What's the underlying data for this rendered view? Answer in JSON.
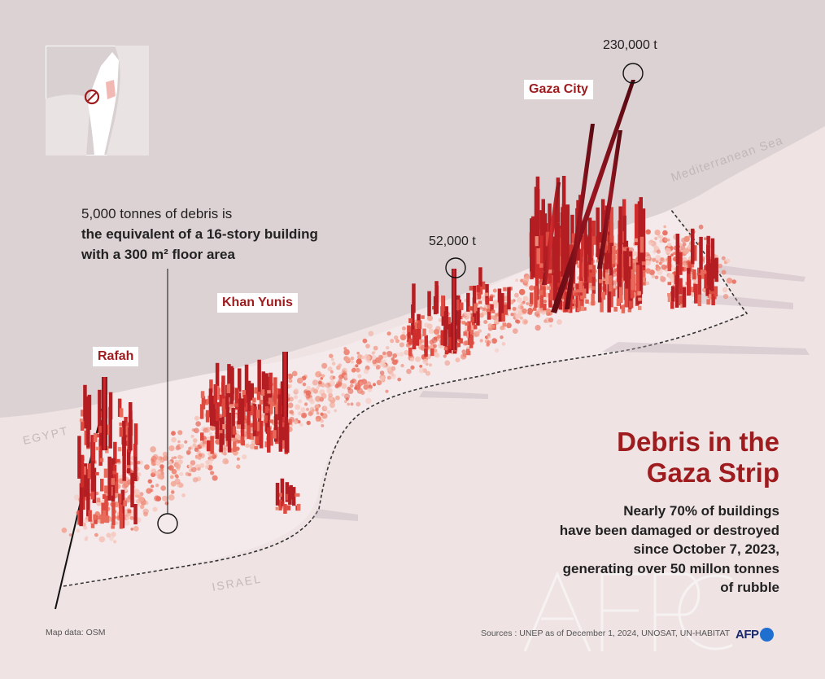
{
  "cities": {
    "gaza_city": "Gaza City",
    "khan_yunis": "Khan Yunis",
    "rafah": "Rafah"
  },
  "annotations": {
    "peak_gaza": "230,000 t",
    "peak_middle": "52,000 t"
  },
  "regions": {
    "sea": "Mediterranean Sea",
    "egypt": "EGYPT",
    "israel": "ISRAEL"
  },
  "legend": {
    "line1": "5,000 tonnes of debris is",
    "line2": "the equivalent of a 16-story building",
    "line3": "with a 300 m² floor area"
  },
  "title": {
    "line1": "Debris in the",
    "line2": "Gaza Strip"
  },
  "subtitle": {
    "line1": "Nearly 70% of buildings",
    "line2": "have been damaged or destroyed",
    "line3": "since October 7, 2023,",
    "line4": "generating over 50 millon tonnes",
    "line5": "of rubble"
  },
  "footer": {
    "sources": "Sources : UNEP as of December 1, 2024, UNOSAT, UN-HABITAT",
    "map_data": "Map data: OSM",
    "logo": "AFP"
  },
  "colors": {
    "accent": "#9e1b1e",
    "sea": "#ddd2d3",
    "land": "#efe3e4",
    "bar_dark": "#6e0d16",
    "bar_mid": "#c91f27",
    "bar_light": "#f0907f",
    "logo_blue": "#1f6fd0"
  },
  "watermark_icon": "afp-watermark-icon"
}
